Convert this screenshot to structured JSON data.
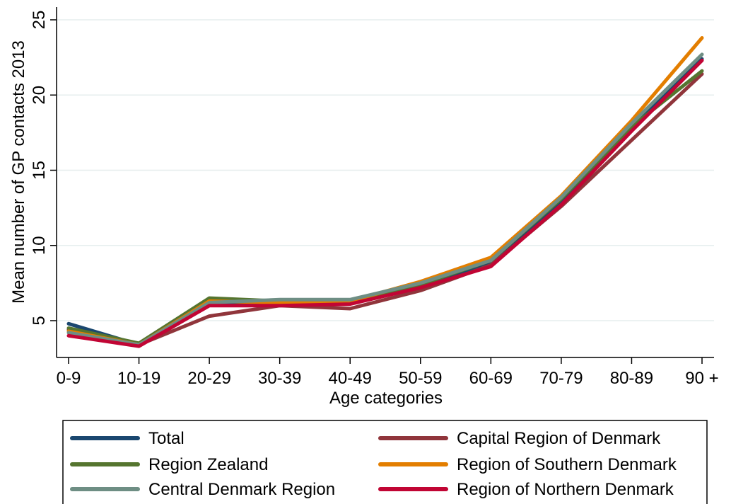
{
  "chart_data": {
    "type": "line",
    "title": "",
    "xlabel": "Age categories",
    "ylabel": "Mean number of GP contacts 2013",
    "categories": [
      "0-9",
      "10-19",
      "20-29",
      "30-39",
      "40-49",
      "50-59",
      "60-69",
      "70-79",
      "80-89",
      "90 +"
    ],
    "yticks": [
      "5",
      "10",
      "15",
      "20",
      "25"
    ],
    "ylim": [
      2.5,
      25.5
    ],
    "grid": true,
    "legend_position": "bottom",
    "series": [
      {
        "name": "Total",
        "color": "#1a476f",
        "values": [
          4.8,
          3.4,
          6.1,
          6.2,
          6.2,
          7.3,
          8.8,
          13.0,
          17.8,
          22.4
        ]
      },
      {
        "name": "Capital Region of Denmark",
        "color": "#90353b",
        "values": [
          4.4,
          3.4,
          5.3,
          6.0,
          5.8,
          7.0,
          8.7,
          12.6,
          17.0,
          21.4
        ]
      },
      {
        "name": "Region Zealand",
        "color": "#55752f",
        "values": [
          4.5,
          3.5,
          6.5,
          6.3,
          6.3,
          7.4,
          9.0,
          13.1,
          17.9,
          21.6
        ]
      },
      {
        "name": "Region of Southern Denmark",
        "color": "#e37e00",
        "values": [
          4.3,
          3.4,
          6.3,
          6.2,
          6.3,
          7.6,
          9.2,
          13.3,
          18.3,
          23.8
        ]
      },
      {
        "name": "Central Denmark Region",
        "color": "#6e8e84",
        "values": [
          4.2,
          3.4,
          6.2,
          6.4,
          6.4,
          7.5,
          9.0,
          13.2,
          18.1,
          22.7
        ]
      },
      {
        "name": "Region of Northern Denmark",
        "color": "#c10534",
        "values": [
          4.0,
          3.3,
          6.0,
          6.0,
          6.1,
          7.2,
          8.6,
          12.7,
          17.6,
          22.3
        ]
      }
    ]
  }
}
